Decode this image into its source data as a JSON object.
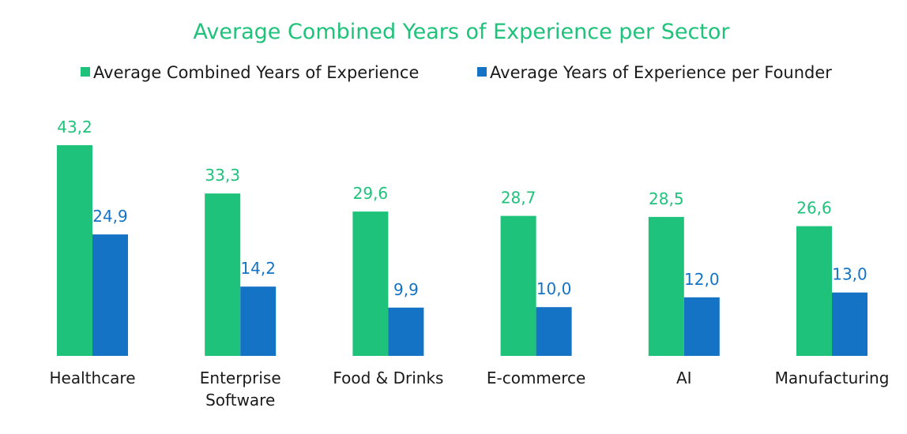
{
  "colors": {
    "green": "#1fc27a",
    "blue": "#1473c4",
    "title": "#1fc27a"
  },
  "chart_data": {
    "type": "bar",
    "title": "Average Combined Years of Experience per Sector",
    "categories": [
      [
        "Healthcare"
      ],
      [
        "Enterprise",
        "Software"
      ],
      [
        "Food & Drinks"
      ],
      [
        "E-commerce"
      ],
      [
        "AI"
      ],
      [
        "Manufacturing"
      ]
    ],
    "series": [
      {
        "name": "Average Combined Years of Experience",
        "values": [
          43.2,
          33.3,
          29.6,
          28.7,
          28.5,
          26.6
        ],
        "labels": [
          "43,2",
          "33,3",
          "29,6",
          "28,7",
          "28,5",
          "26,6"
        ]
      },
      {
        "name": "Average Years of Experience per Founder",
        "values": [
          24.9,
          14.2,
          9.9,
          10.0,
          12.0,
          13.0
        ],
        "labels": [
          "24,9",
          "14,2",
          "9,9",
          "10,0",
          "12,0",
          "13,0"
        ]
      }
    ],
    "ylim": [
      0,
      43.2
    ],
    "grid": false,
    "legend": "top-center"
  }
}
